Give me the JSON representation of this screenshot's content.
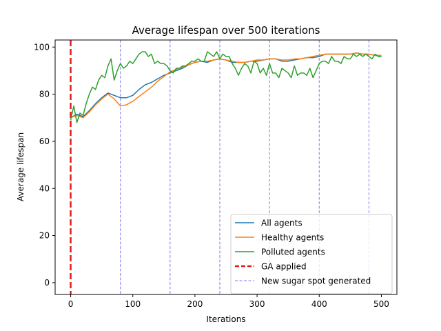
{
  "chart_data": {
    "type": "line",
    "title": "Average lifespan over 500 iterations",
    "xlabel": "Iterations",
    "ylabel": "Average lifespan",
    "xlim": [
      -25,
      525
    ],
    "ylim": [
      -5,
      103
    ],
    "xticks": [
      0,
      100,
      200,
      300,
      400,
      500
    ],
    "yticks": [
      0,
      20,
      40,
      60,
      80,
      100
    ],
    "grid": false,
    "legend_position": "lower-right",
    "series": [
      {
        "name": "All agents",
        "color": "#1f77b4",
        "x": [
          0,
          10,
          20,
          30,
          40,
          50,
          60,
          70,
          80,
          90,
          100,
          110,
          120,
          130,
          140,
          150,
          160,
          170,
          180,
          190,
          200,
          210,
          220,
          230,
          240,
          250,
          260,
          270,
          280,
          290,
          300,
          310,
          320,
          330,
          340,
          350,
          360,
          370,
          380,
          390,
          400,
          410,
          420,
          430,
          440,
          450,
          460,
          470,
          480,
          490,
          500
        ],
        "y": [
          70,
          71.5,
          70.5,
          73,
          76,
          78.5,
          80.5,
          79.5,
          78.5,
          78.5,
          79.5,
          82,
          84,
          85,
          86.5,
          88,
          89,
          90,
          91,
          92.5,
          93.5,
          94,
          93.5,
          94.5,
          95,
          94.5,
          93.5,
          93.5,
          93.5,
          94,
          94,
          94.5,
          95,
          95,
          94,
          94,
          94.5,
          95,
          95.5,
          95.5,
          96,
          97,
          97,
          97,
          97,
          97,
          97.5,
          97,
          97,
          96.5,
          96
        ]
      },
      {
        "name": "Healthy agents",
        "color": "#ff7f0e",
        "x": [
          0,
          10,
          20,
          30,
          40,
          50,
          60,
          70,
          80,
          90,
          100,
          110,
          120,
          130,
          140,
          150,
          160,
          170,
          180,
          190,
          200,
          210,
          220,
          230,
          240,
          250,
          260,
          270,
          280,
          290,
          300,
          310,
          320,
          330,
          340,
          350,
          360,
          370,
          380,
          390,
          400,
          410,
          420,
          430,
          440,
          450,
          460,
          470,
          480,
          490,
          500
        ],
        "y": [
          70,
          71,
          70,
          72.5,
          75.5,
          78,
          80,
          78,
          75,
          75.5,
          77,
          79,
          81,
          83,
          85.5,
          87.5,
          89.5,
          90.5,
          91.5,
          92.5,
          93.5,
          94,
          94,
          94.5,
          95,
          94.5,
          94,
          93.5,
          93.5,
          94,
          94.5,
          94.5,
          95,
          95,
          94.5,
          94.5,
          95,
          95,
          95.5,
          96,
          96.5,
          97,
          97,
          97,
          97,
          97,
          97.5,
          97,
          97,
          96.5,
          96.5
        ]
      },
      {
        "name": "Polluted agents",
        "color": "#2ca02c",
        "x": [
          0,
          5,
          10,
          15,
          20,
          25,
          30,
          35,
          40,
          45,
          50,
          55,
          60,
          65,
          70,
          75,
          80,
          85,
          90,
          95,
          100,
          105,
          110,
          115,
          120,
          125,
          130,
          135,
          140,
          145,
          150,
          155,
          160,
          165,
          170,
          175,
          180,
          185,
          190,
          195,
          200,
          205,
          210,
          215,
          220,
          225,
          230,
          235,
          240,
          245,
          250,
          255,
          260,
          265,
          270,
          275,
          280,
          285,
          290,
          295,
          300,
          305,
          310,
          315,
          320,
          325,
          330,
          335,
          340,
          345,
          350,
          355,
          360,
          365,
          370,
          375,
          380,
          385,
          390,
          395,
          400,
          405,
          410,
          415,
          420,
          425,
          430,
          435,
          440,
          445,
          450,
          455,
          460,
          465,
          470,
          475,
          480,
          485,
          490,
          495,
          500
        ],
        "y": [
          69,
          75,
          68,
          72,
          71,
          76,
          80,
          83,
          82,
          86,
          88,
          87,
          92,
          95,
          86,
          90,
          93,
          91,
          92,
          94,
          93,
          95,
          97,
          98,
          98,
          96,
          97,
          93,
          94,
          93,
          93,
          92,
          90,
          89,
          91,
          91,
          92,
          92,
          93,
          94,
          94,
          95,
          94,
          94,
          98,
          97,
          96,
          98,
          95,
          97,
          96,
          96,
          93,
          91,
          88,
          91,
          93,
          92,
          89,
          94,
          93,
          89,
          91,
          88,
          93,
          89,
          89,
          87,
          91,
          90,
          89,
          87,
          92,
          88,
          89,
          89,
          88,
          91,
          87,
          90,
          93,
          94,
          94,
          93,
          96,
          94,
          94,
          93,
          96,
          95,
          95,
          97,
          96,
          97,
          96,
          97,
          96,
          95,
          97,
          96,
          96
        ]
      }
    ],
    "vlines": [
      {
        "name": "GA applied",
        "color": "#e31a1c",
        "style": "bold-dashed",
        "x": [
          0
        ]
      },
      {
        "name": "New sugar spot generated",
        "color": "#7b7bef",
        "style": "thin-dashed",
        "x": [
          80,
          160,
          240,
          320,
          400,
          480
        ]
      }
    ]
  }
}
